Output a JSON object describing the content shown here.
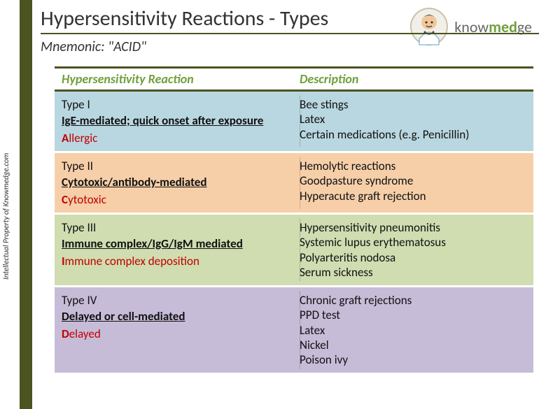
{
  "sidebar_text": "Intellectual Property of Knowmedge.com",
  "title": "Hypersensitivity Reactions - Types",
  "mnemonic": "Mnemonic:  \"ACID\"",
  "logo": {
    "brand_pre": "know",
    "brand_mid": "med",
    "brand_post": "ge"
  },
  "headers": {
    "col1": "Hypersensitivity Reaction",
    "col2": "Description"
  },
  "colors": {
    "sidebar": "#4b5320",
    "accent_green": "#6fa03c",
    "mnemonic_red": "#c00000",
    "row_bg": [
      "#b9d7e0",
      "#f6cfa9",
      "#cfddb1",
      "#c7bcd8"
    ]
  },
  "rows": [
    {
      "type": "Type I",
      "mechanism": "IgE-mediated; quick onset after exposure",
      "mnemonic_lead": "A",
      "mnemonic_rest": "llergic",
      "desc": [
        "Bee stings",
        "Latex",
        "Certain medications (e.g. Penicillin)"
      ]
    },
    {
      "type": "Type II",
      "mechanism": "Cytotoxic/antibody-mediated",
      "mnemonic_lead": "C",
      "mnemonic_rest": "ytotoxic",
      "desc": [
        "Hemolytic reactions",
        "Goodpasture syndrome",
        "Hyperacute graft rejection"
      ]
    },
    {
      "type": "Type III",
      "mechanism": "Immune complex/IgG/IgM mediated",
      "mnemonic_lead": "I",
      "mnemonic_rest": "mmune complex deposition",
      "desc": [
        "Hypersensitivity pneumonitis",
        "Systemic lupus erythematosus",
        "Polyarteritis nodosa",
        "Serum sickness"
      ]
    },
    {
      "type": "Type IV",
      "mechanism": "Delayed or cell-mediated",
      "mnemonic_lead": "D",
      "mnemonic_rest": "elayed",
      "desc": [
        "Chronic graft rejections",
        "PPD test",
        "Latex",
        "Nickel",
        "Poison ivy"
      ]
    }
  ]
}
